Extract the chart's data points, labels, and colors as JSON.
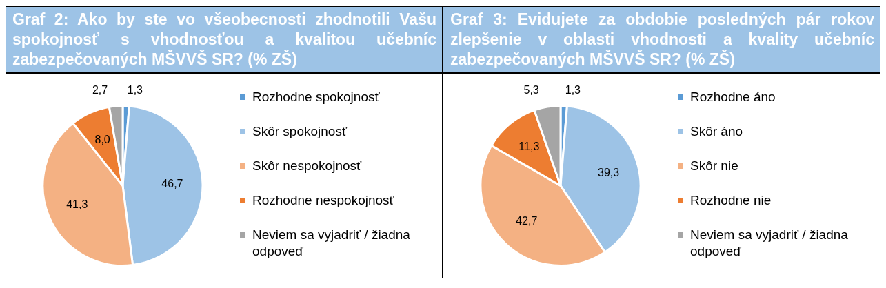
{
  "chart_data": [
    {
      "type": "pie",
      "title": "Graf 2: Ako by ste vo všeobecnosti zhodnotili Vašu spokojnosť s vhodnosťou a kvalitou učebníc zabezpečovaných MŠVVŠ SR? (% ZŠ)",
      "categories": [
        "Rozhodne spokojnosť",
        "Skôr spokojnosť",
        "Skôr nespokojnosť",
        "Rozhodne nespokojnosť",
        "Neviem sa vyjadriť / žiadna odpoveď"
      ],
      "values": [
        1.3,
        46.7,
        41.3,
        8.0,
        2.7
      ],
      "value_labels": [
        "1,3",
        "46,7",
        "41,3",
        "8,0",
        "2,7"
      ],
      "colors": [
        "#5b9bd5",
        "#9dc3e6",
        "#f4b183",
        "#ed7d31",
        "#a5a5a5"
      ],
      "legend": "right"
    },
    {
      "type": "pie",
      "title": "Graf 3: Evidujete za obdobie posledných pár rokov zlepšenie v oblasti vhodnosti a kvality učebníc zabezpečovaných MŠVVŠ SR? (% ZŠ)",
      "categories": [
        "Rozhodne áno",
        "Skôr áno",
        "Skôr nie",
        "Rozhodne nie",
        "Neviem sa vyjadriť / žiadna odpoveď"
      ],
      "values": [
        1.3,
        39.3,
        42.7,
        11.3,
        5.3
      ],
      "value_labels": [
        "1,3",
        "39,3",
        "42,7",
        "11,3",
        "5,3"
      ],
      "colors": [
        "#5b9bd5",
        "#9dc3e6",
        "#f4b183",
        "#ed7d31",
        "#a5a5a5"
      ],
      "legend": "right"
    }
  ]
}
